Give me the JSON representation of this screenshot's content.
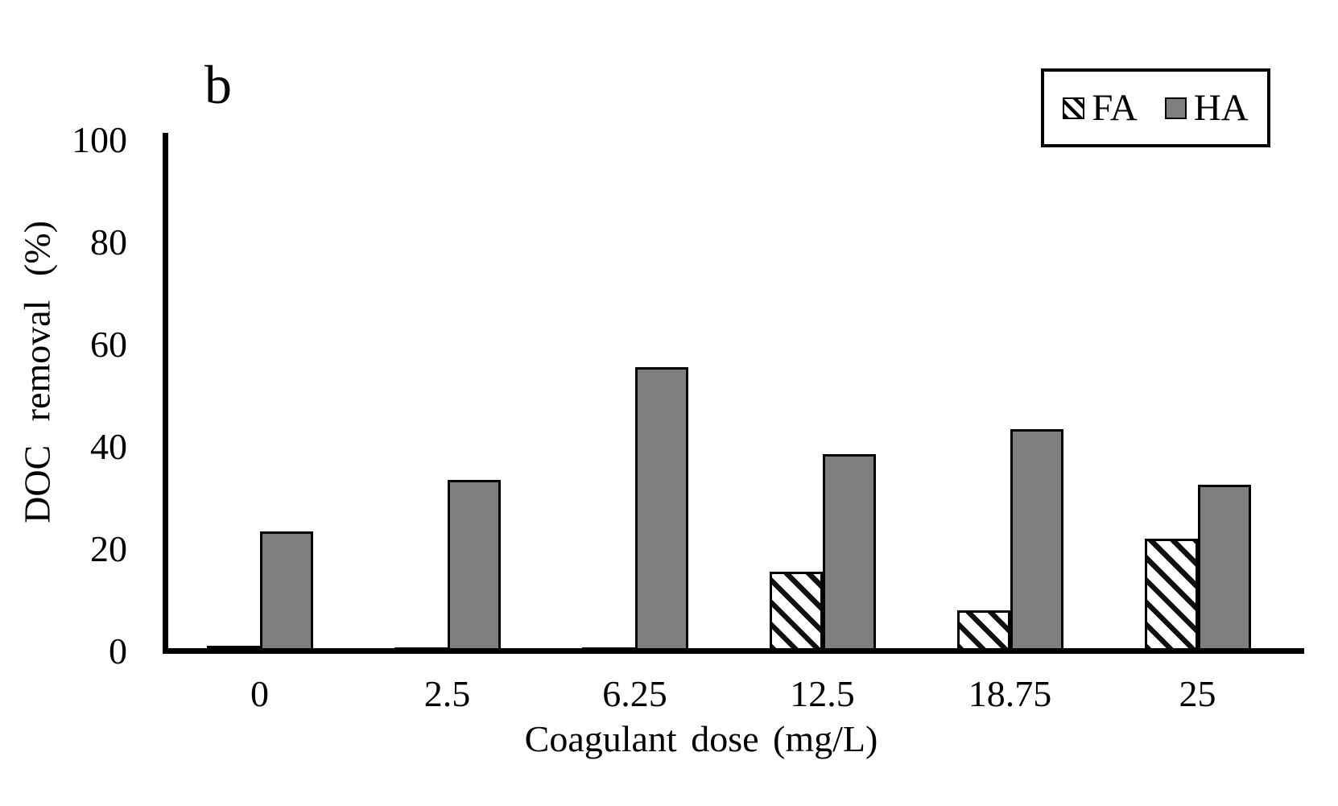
{
  "chart_data": {
    "type": "bar",
    "panel_label": "b",
    "categories": [
      "0",
      "2.5",
      "6.25",
      "12.5",
      "18.75",
      "25"
    ],
    "series": [
      {
        "name": "FA",
        "fill": "diagonal-hatch",
        "values": [
          1.5,
          1.3,
          1.3,
          16,
          8.5,
          22.5
        ]
      },
      {
        "name": "HA",
        "fill": "#7f7f7f",
        "values": [
          24,
          34,
          56,
          39,
          44,
          33
        ]
      }
    ],
    "xlabel": "Coagulant dose (mg/L)",
    "ylabel": "DOC removal (%)",
    "ylim": [
      0,
      100
    ],
    "yticks": [
      0,
      20,
      40,
      60,
      80,
      100
    ],
    "grid": false,
    "legend_position": "top-right",
    "axis_color": "#000000",
    "bar_border_color": "#000000",
    "ha_fill_color": "#7f7f7f"
  }
}
